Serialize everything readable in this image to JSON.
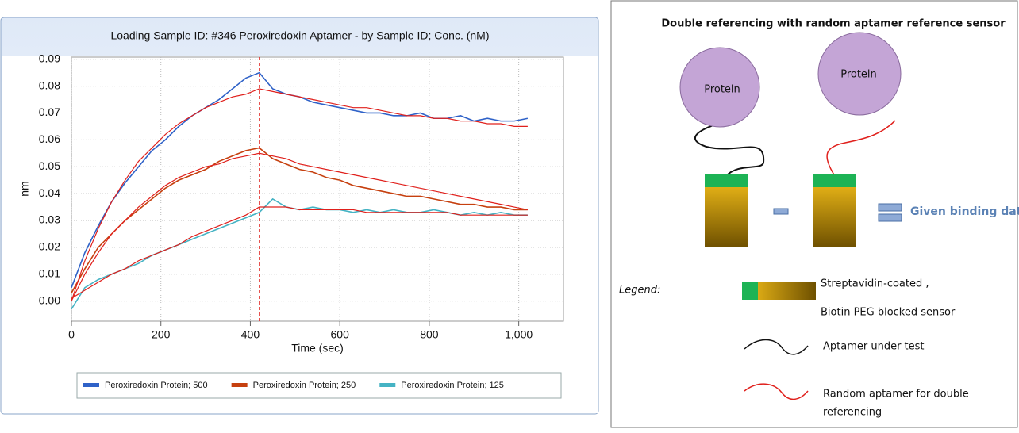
{
  "chart_data": {
    "type": "line",
    "title": "Loading Sample ID: #346 Peroxiredoxin Aptamer - by Sample ID; Conc. (nM)",
    "x_label": "Time (sec)",
    "y_label": "nm",
    "x": [
      0,
      30,
      60,
      90,
      120,
      150,
      180,
      210,
      240,
      270,
      300,
      330,
      360,
      390,
      420,
      450,
      480,
      510,
      540,
      570,
      600,
      630,
      660,
      690,
      720,
      750,
      780,
      810,
      840,
      870,
      900,
      930,
      960,
      990,
      1020
    ],
    "xlim": [
      0,
      1100
    ],
    "xticks": [
      0,
      200,
      400,
      600,
      800,
      {
        "value": 1000,
        "label": "1,000"
      }
    ],
    "ylim": [
      -0.0075,
      0.0908
    ],
    "yticks": [
      {
        "value": 0,
        "label": "0.00"
      },
      0.01,
      0.02,
      0.03,
      0.04,
      0.05,
      0.06,
      0.07,
      0.08,
      0.09
    ],
    "grid": true,
    "vline": 420,
    "vline_color": "#e0201c",
    "series": [
      {
        "name": "Peroxiredoxin Protein; 500",
        "color": "#2f62c8",
        "values": [
          0.005,
          0.018,
          0.028,
          0.037,
          0.044,
          0.05,
          0.056,
          0.06,
          0.065,
          0.069,
          0.072,
          0.075,
          0.079,
          0.083,
          0.085,
          0.079,
          0.077,
          0.076,
          0.074,
          0.073,
          0.072,
          0.071,
          0.07,
          0.07,
          0.069,
          0.069,
          0.07,
          0.068,
          0.068,
          0.069,
          0.067,
          0.068,
          0.067,
          0.067,
          0.068
        ]
      },
      {
        "name": "Peroxiredoxin Protein; 250",
        "color": "#c6400f",
        "values": [
          0.003,
          0.012,
          0.02,
          0.025,
          0.03,
          0.034,
          0.038,
          0.042,
          0.045,
          0.047,
          0.049,
          0.052,
          0.054,
          0.056,
          0.057,
          0.053,
          0.051,
          0.049,
          0.048,
          0.046,
          0.045,
          0.043,
          0.042,
          0.041,
          0.04,
          0.039,
          0.039,
          0.038,
          0.037,
          0.036,
          0.036,
          0.035,
          0.035,
          0.034,
          0.034
        ]
      },
      {
        "name": "Peroxiredoxin Protein; 125",
        "color": "#45b3c4",
        "values": [
          -0.003,
          0.005,
          0.008,
          0.01,
          0.012,
          0.014,
          0.017,
          0.019,
          0.021,
          0.023,
          0.025,
          0.027,
          0.029,
          0.031,
          0.033,
          0.038,
          0.035,
          0.034,
          0.035,
          0.034,
          0.034,
          0.033,
          0.034,
          0.033,
          0.034,
          0.033,
          0.033,
          0.034,
          0.033,
          0.032,
          0.033,
          0.032,
          0.033,
          0.032,
          0.032
        ]
      },
      {
        "color": "#e0201c",
        "values": [
          0.0,
          0.015,
          0.027,
          0.037,
          0.045,
          0.052,
          0.057,
          0.062,
          0.066,
          0.069,
          0.072,
          0.074,
          0.076,
          0.077,
          0.079,
          0.078,
          0.077,
          0.076,
          0.075,
          0.074,
          0.073,
          0.072,
          0.072,
          0.071,
          0.07,
          0.069,
          0.069,
          0.068,
          0.068,
          0.067,
          0.067,
          0.066,
          0.066,
          0.065,
          0.065
        ]
      },
      {
        "color": "#e0201c",
        "values": [
          0.0,
          0.01,
          0.018,
          0.025,
          0.03,
          0.035,
          0.039,
          0.043,
          0.046,
          0.048,
          0.05,
          0.051,
          0.053,
          0.054,
          0.055,
          0.054,
          0.053,
          0.051,
          0.05,
          0.049,
          0.048,
          0.047,
          0.046,
          0.045,
          0.044,
          0.043,
          0.042,
          0.041,
          0.04,
          0.039,
          0.038,
          0.037,
          0.036,
          0.035,
          0.034
        ]
      },
      {
        "color": "#e0201c",
        "values": [
          0.001,
          0.004,
          0.007,
          0.01,
          0.012,
          0.015,
          0.017,
          0.019,
          0.021,
          0.024,
          0.026,
          0.028,
          0.03,
          0.032,
          0.035,
          0.035,
          0.035,
          0.034,
          0.034,
          0.034,
          0.034,
          0.034,
          0.033,
          0.033,
          0.033,
          0.033,
          0.033,
          0.033,
          0.033,
          0.032,
          0.032,
          0.032,
          0.032,
          0.032,
          0.032
        ]
      }
    ]
  },
  "diagram": {
    "title": "Double referencing  with random aptamer reference sensor",
    "proteins": [
      "Protein",
      "Protein"
    ],
    "given_label": "Given binding data",
    "legend": {
      "title": "Legend:",
      "sensor": [
        "Streptavidin-coated ,",
        "Biotin PEG blocked sensor"
      ],
      "aptamer": "Aptamer under test",
      "random": [
        "Random aptamer for double",
        "referencing"
      ]
    }
  }
}
